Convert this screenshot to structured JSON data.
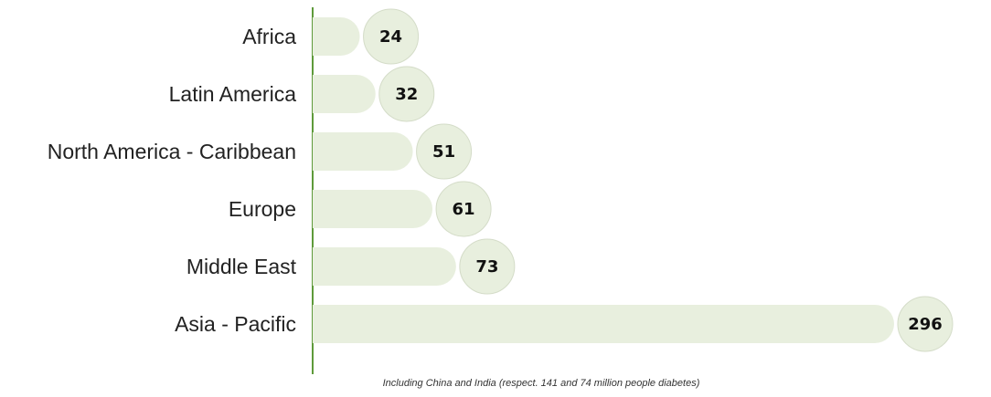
{
  "chart_data": {
    "type": "bar",
    "orientation": "horizontal",
    "categories": [
      "Africa",
      "Latin America",
      "North America - Caribbean",
      "Europe",
      "Middle East",
      "Asia - Pacific"
    ],
    "values": [
      24,
      32,
      51,
      61,
      73,
      296
    ],
    "title": "",
    "xlabel": "",
    "ylabel": "",
    "grid": false,
    "legend": "none",
    "note": "Including China and India (respect. 141 and 74 million people diabetes)"
  },
  "colors": {
    "bar": "#e8efde",
    "bubble": "#e8efde",
    "bubble_stroke": "#d4dcc8",
    "axis": "#5e9a3a",
    "text": "#222222"
  }
}
